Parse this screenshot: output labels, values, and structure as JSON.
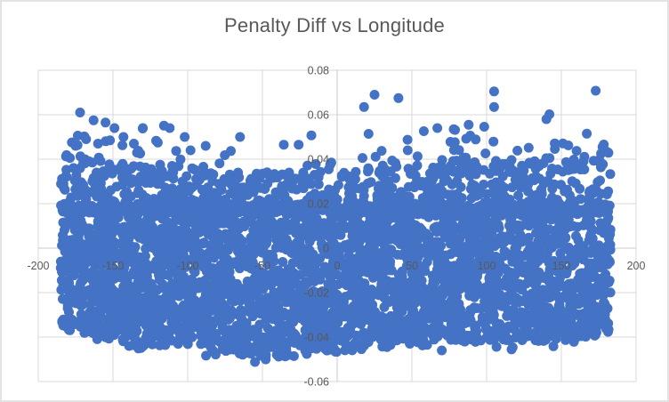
{
  "chart_data": {
    "type": "scatter",
    "title": "Penalty Diff vs Longitude",
    "xlabel": "",
    "ylabel": "",
    "xlim": [
      -200,
      200
    ],
    "ylim": [
      -0.06,
      0.08
    ],
    "x_ticks": [
      {
        "v": -200,
        "label": "-200"
      },
      {
        "v": -150,
        "label": "-150"
      },
      {
        "v": -100,
        "label": "-100"
      },
      {
        "v": -50,
        "label": "-50"
      },
      {
        "v": 0,
        "label": "0"
      },
      {
        "v": 50,
        "label": "50"
      },
      {
        "v": 100,
        "label": "100"
      },
      {
        "v": 150,
        "label": "150"
      },
      {
        "v": 200,
        "label": "200"
      }
    ],
    "y_ticks": [
      {
        "v": 0.08,
        "label": "0.08"
      },
      {
        "v": 0.06,
        "label": "0.06"
      },
      {
        "v": 0.04,
        "label": "0.04"
      },
      {
        "v": 0.02,
        "label": "0.02"
      },
      {
        "v": 0,
        "label": "0"
      },
      {
        "v": -0.02,
        "label": "-0.02"
      },
      {
        "v": -0.04,
        "label": "-0.04"
      },
      {
        "v": -0.06,
        "label": "-0.06"
      }
    ],
    "grid": true,
    "legend": "none",
    "colors": {
      "marker": "#4472C4",
      "gridline": "#D9D9D9",
      "axis_line": "#C9C9C9",
      "tick_label": "#595959",
      "title": "#595959",
      "background": "#FFFFFF"
    },
    "marker_radius_px": 5.5,
    "cloud": {
      "description": "Dense uniform band of ~4500 points across all longitudes; solid between bottom_profile and 0.02, thinning upward to top_profile, sparse fringe to 0.056, plus explicit outliers.",
      "seed": 1337,
      "x_range": [
        -185,
        183
      ],
      "core": {
        "n": 3400,
        "top": 0.02
      },
      "upper": {
        "n": 950,
        "from": 0.016,
        "lift": 0.004,
        "power": 2
      },
      "fringe": {
        "n": 130,
        "max": 0.056,
        "power": 2.2
      },
      "low_fringe": {
        "n": 22,
        "depth": 0.0045,
        "power": 2
      },
      "top_profile": [
        [
          -185,
          0.039
        ],
        [
          -150,
          0.0368
        ],
        [
          -120,
          0.034
        ],
        [
          -80,
          0.0322
        ],
        [
          -40,
          0.03
        ],
        [
          0,
          0.0305
        ],
        [
          40,
          0.032
        ],
        [
          80,
          0.034
        ],
        [
          120,
          0.036
        ],
        [
          160,
          0.0385
        ],
        [
          183,
          0.0398
        ]
      ],
      "bottom_profile": [
        [
          -185,
          -0.036
        ],
        [
          -160,
          -0.04
        ],
        [
          -130,
          -0.044
        ],
        [
          -100,
          -0.0435
        ],
        [
          -70,
          -0.047
        ],
        [
          -45,
          -0.05
        ],
        [
          -20,
          -0.048
        ],
        [
          10,
          -0.046
        ],
        [
          40,
          -0.0435
        ],
        [
          80,
          -0.042
        ],
        [
          120,
          -0.0425
        ],
        [
          160,
          -0.041
        ],
        [
          183,
          -0.038
        ]
      ],
      "outliers": [
        [
          -172,
          0.061
        ],
        [
          -163,
          0.0575
        ],
        [
          -155,
          0.0565
        ],
        [
          -149,
          0.054
        ],
        [
          -175,
          0.046
        ],
        [
          -168,
          0.049
        ],
        [
          -160,
          0.047
        ],
        [
          -152,
          0.0485
        ],
        [
          -143,
          0.05
        ],
        [
          -136,
          0.047
        ],
        [
          -130,
          0.054
        ],
        [
          -120,
          0.0475
        ],
        [
          -112,
          0.054
        ],
        [
          -102,
          0.05
        ],
        [
          -88,
          0.046
        ],
        [
          -65,
          0.05
        ],
        [
          18,
          0.0635
        ],
        [
          25,
          0.069
        ],
        [
          41,
          0.0675
        ],
        [
          67,
          0.054
        ],
        [
          78,
          0.0535
        ],
        [
          88,
          0.0555
        ],
        [
          105,
          0.0705
        ],
        [
          105,
          0.0635
        ],
        [
          140,
          0.058
        ],
        [
          142,
          0.0602
        ],
        [
          167,
          0.0515
        ],
        [
          173,
          0.0708
        ],
        [
          -55,
          -0.0512
        ],
        [
          -48,
          -0.0492
        ],
        [
          70,
          -0.046
        ]
      ]
    }
  }
}
